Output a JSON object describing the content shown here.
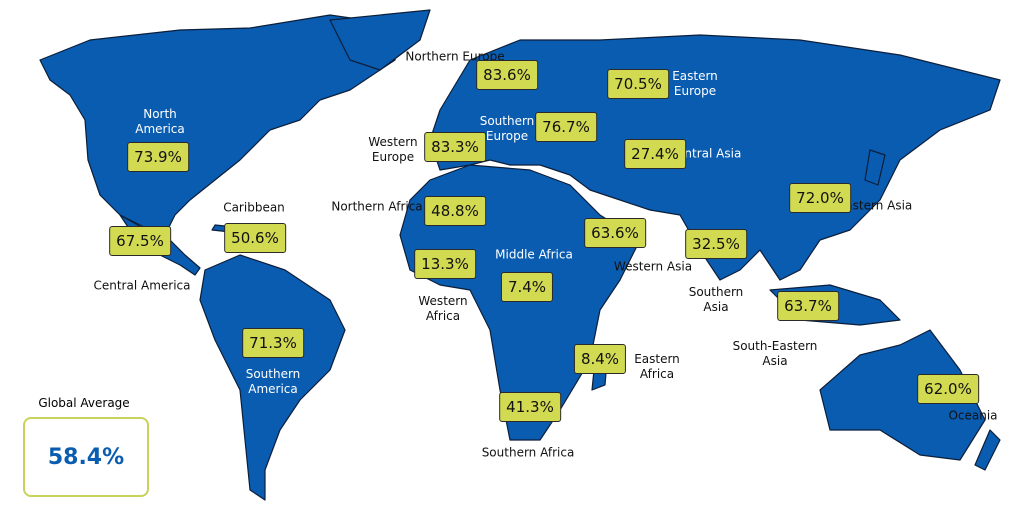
{
  "regions": [
    {
      "name": "North America",
      "value": "73.9%"
    },
    {
      "name": "Central America",
      "value": "67.5%"
    },
    {
      "name": "Caribbean",
      "value": "50.6%"
    },
    {
      "name": "Southern America",
      "value": "71.3%"
    },
    {
      "name": "Northern Europe",
      "value": "83.6%"
    },
    {
      "name": "Western Europe",
      "value": "83.3%"
    },
    {
      "name": "Southern Europe",
      "value": "76.7%"
    },
    {
      "name": "Eastern Europe",
      "value": "70.5%"
    },
    {
      "name": "Central Asia",
      "value": "27.4%"
    },
    {
      "name": "Northern Africa",
      "value": "48.8%"
    },
    {
      "name": "Western Africa",
      "value": "13.3%"
    },
    {
      "name": "Middle Africa",
      "value": "7.4%"
    },
    {
      "name": "Western Asia",
      "value": "63.6%"
    },
    {
      "name": "Southern Asia",
      "value": "32.5%"
    },
    {
      "name": "Eastern Asia",
      "value": "72.0%"
    },
    {
      "name": "South-Eastern Asia",
      "value": "63.7%"
    },
    {
      "name": "Eastern Africa",
      "value": "8.4%"
    },
    {
      "name": "Southern Africa",
      "value": "41.3%"
    },
    {
      "name": "Oceania",
      "value": "62.0%"
    }
  ],
  "global": {
    "label": "Global Average",
    "value": "58.4%"
  }
}
